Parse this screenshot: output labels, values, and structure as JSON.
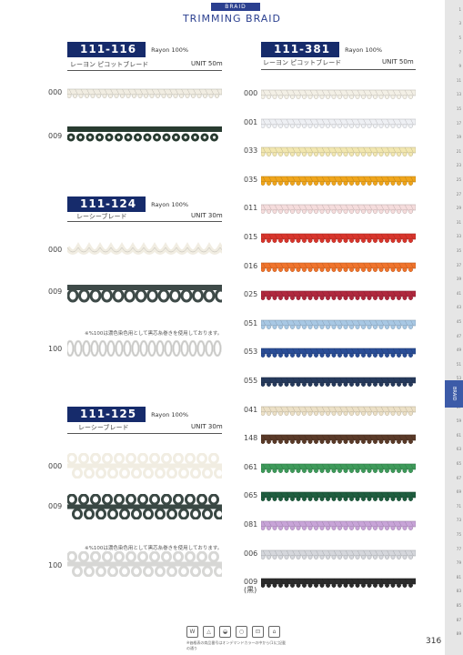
{
  "header": {
    "category": "BRAID",
    "title": "TRIMMING  BRAID"
  },
  "products": [
    {
      "code": "111-116",
      "material": "Rayon  100%",
      "name": "レーヨン ピコットブレード",
      "unit": "UNIT  50m",
      "items": [
        {
          "label": "000",
          "color": "#f1ede2"
        },
        {
          "label": "009",
          "color": "#283b30"
        }
      ]
    },
    {
      "code": "111-124",
      "material": "Rayon  100%",
      "name": "レーシーブレード",
      "unit": "UNIT  30m",
      "note": "※%100は濃色染色用として黒芯糸巻きを使用しております。",
      "items": [
        {
          "label": "000",
          "color": "#f1ede2"
        },
        {
          "label": "009",
          "color": "#3e4a48"
        },
        {
          "label": "100",
          "color": "#d9d9d7"
        }
      ]
    },
    {
      "code": "111-125",
      "material": "Rayon  100%",
      "name": "レーシーブレード",
      "unit": "UNIT  30m",
      "note": "※%100は濃色染色用として黒芯糸巻きを使用しております。",
      "items": [
        {
          "label": "000",
          "color": "#f1ede2"
        },
        {
          "label": "009",
          "color": "#3a4844"
        },
        {
          "label": "100",
          "color": "#d7d7d5"
        }
      ]
    },
    {
      "code": "111-381",
      "material": "Rayon  100%",
      "name": "レーヨン ピコットブレード",
      "unit": "UNIT  50m",
      "items": [
        {
          "label": "000",
          "color": "#f3f0e6"
        },
        {
          "label": "001",
          "color": "#eef0f4"
        },
        {
          "label": "033",
          "color": "#f2e7b0"
        },
        {
          "label": "035",
          "color": "#f0a51b"
        },
        {
          "label": "011",
          "color": "#f5dcdc"
        },
        {
          "label": "015",
          "color": "#d8352c"
        },
        {
          "label": "016",
          "color": "#f0742c"
        },
        {
          "label": "025",
          "color": "#b0283e"
        },
        {
          "label": "051",
          "color": "#a8c8e4"
        },
        {
          "label": "053",
          "color": "#2a4d96"
        },
        {
          "label": "055",
          "color": "#263a5c"
        },
        {
          "label": "041",
          "color": "#ece0c6"
        },
        {
          "label": "148",
          "color": "#5a3a28"
        },
        {
          "label": "061",
          "color": "#3e9a5a"
        },
        {
          "label": "065",
          "color": "#1f5e3f"
        },
        {
          "label": "081",
          "color": "#c8a4d8"
        },
        {
          "label": "006",
          "color": "#d5d7dc"
        },
        {
          "label": "009\n(黒)",
          "color": "#2c2c2c"
        }
      ]
    }
  ],
  "sidebar": {
    "tab_label": "BRAID"
  },
  "page_number": "316",
  "footnote": "※価格表の商品番号はオンデマンドカラーの中から(1)に記載の通り",
  "care_icons": [
    "wash-icon",
    "bleach-icon",
    "iron-icon",
    "dry-clean-icon",
    "tumble-icon",
    "hang-icon"
  ]
}
